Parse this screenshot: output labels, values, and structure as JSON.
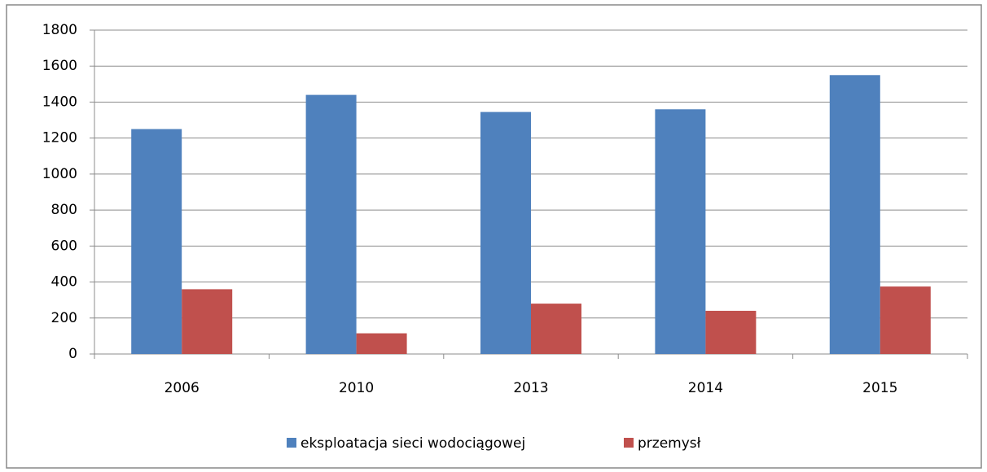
{
  "chart_data": {
    "type": "bar",
    "categories": [
      "2006",
      "2010",
      "2013",
      "2014",
      "2015"
    ],
    "series": [
      {
        "name": "eksploatacja sieci wodociągowej",
        "color": "#4f81bd",
        "values": [
          1250,
          1440,
          1345,
          1360,
          1550
        ]
      },
      {
        "name": "przemysł",
        "color": "#c0504d",
        "values": [
          360,
          115,
          280,
          240,
          375
        ]
      }
    ],
    "ylim": [
      0,
      1800
    ],
    "yticks": [
      0,
      200,
      400,
      600,
      800,
      1000,
      1200,
      1400,
      1600,
      1800
    ],
    "grid": true,
    "legend": "bottom"
  }
}
